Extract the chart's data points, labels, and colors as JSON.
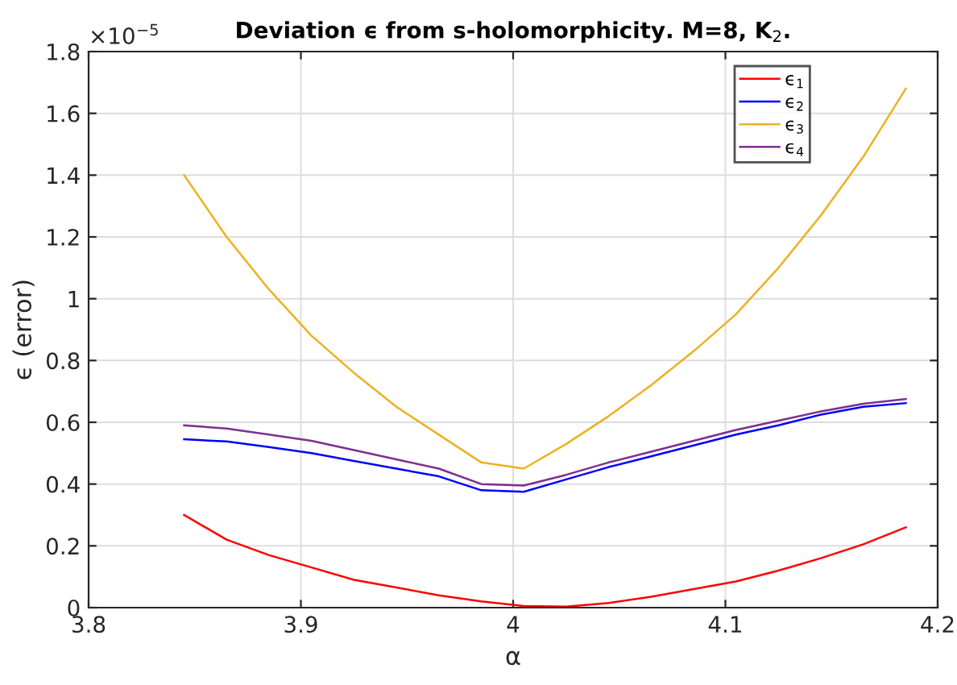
{
  "chart_data": {
    "type": "line",
    "title": "Deviation ϵ from s-holomorphicity. M=8, K$_{2}$.",
    "xlabel": "α",
    "ylabel": "ϵ (error)",
    "annotations": [
      "×10$^{−5}$"
    ],
    "x": [
      3.845,
      3.865,
      3.885,
      3.905,
      3.925,
      3.945,
      3.965,
      3.985,
      4.005,
      4.025,
      4.045,
      4.065,
      4.085,
      4.105,
      4.125,
      4.145,
      4.165,
      4.185
    ],
    "series": [
      {
        "name": "ϵ$_{1}$",
        "color": "#ff0000",
        "values": [
          0.3,
          0.22,
          0.17,
          0.13,
          0.09,
          0.065,
          0.04,
          0.02,
          0.005,
          0.003,
          0.015,
          0.035,
          0.06,
          0.085,
          0.12,
          0.16,
          0.205,
          0.26
        ]
      },
      {
        "name": "ϵ$_{2}$",
        "color": "#0000ff",
        "values": [
          0.545,
          0.538,
          0.52,
          0.5,
          0.475,
          0.45,
          0.425,
          0.38,
          0.375,
          0.415,
          0.455,
          0.49,
          0.525,
          0.56,
          0.59,
          0.625,
          0.65,
          0.662
        ]
      },
      {
        "name": "ϵ$_{3}$",
        "color": "#edb120",
        "values": [
          1.4,
          1.2,
          1.03,
          0.88,
          0.76,
          0.65,
          0.56,
          0.47,
          0.45,
          0.53,
          0.62,
          0.72,
          0.83,
          0.95,
          1.1,
          1.27,
          1.46,
          1.68
        ]
      },
      {
        "name": "ϵ$_{4}$",
        "color": "#7e2f8e",
        "values": [
          0.59,
          0.58,
          0.56,
          0.54,
          0.51,
          0.48,
          0.45,
          0.4,
          0.395,
          0.43,
          0.47,
          0.505,
          0.54,
          0.575,
          0.605,
          0.635,
          0.66,
          0.675
        ]
      }
    ],
    "xlim": [
      3.8,
      4.2
    ],
    "xticks": [
      3.8,
      3.9,
      {
        "value": 4,
        "label": "4"
      },
      4.1,
      4.2
    ],
    "ylim": [
      0,
      1.8
    ],
    "yticks": [
      0,
      0.2,
      0.4,
      0.6,
      0.8,
      1,
      1.2,
      1.4,
      1.6,
      1.8
    ],
    "grid": true,
    "legend": "top right",
    "marker": "none",
    "line_style": "solid"
  }
}
